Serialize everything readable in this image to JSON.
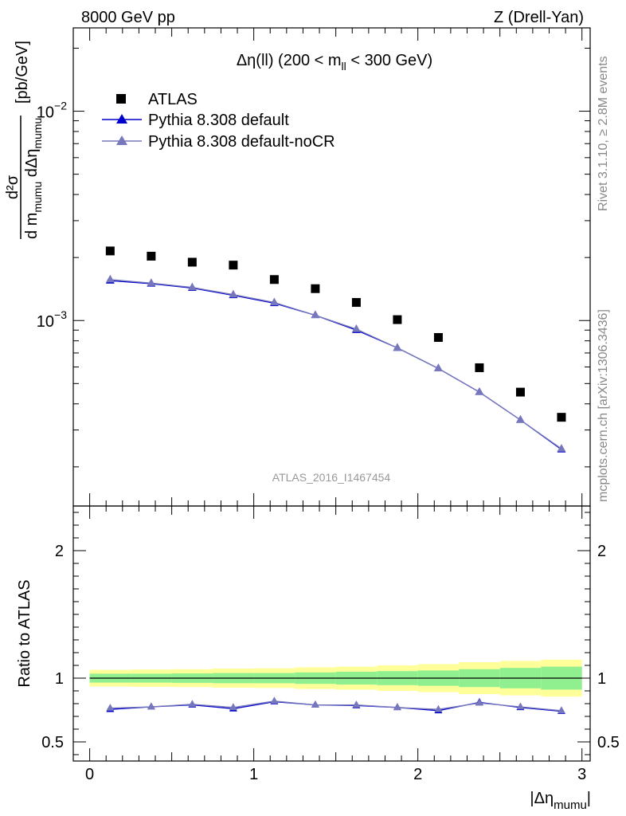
{
  "header": {
    "left": "8000 GeV pp",
    "right": "Z (Drell-Yan)"
  },
  "side_labels": {
    "rivet": "Rivet 3.1.10, ≥ 2.8M events",
    "mcplots": "mcplots.cern.ch [arXiv:1306.3436]"
  },
  "chart_data": [
    {
      "type": "scatter",
      "panel": "main",
      "title": "Δη(ll) (200 < m_ll < 300 GeV)",
      "title_parts": {
        "a": "Δη(ll) (200 < m",
        "sub": "ll",
        "b": " < 300 GeV)"
      },
      "ylabel_parts": {
        "num": "d²σ",
        "den_a": "d m",
        "den_sub1": "mumu",
        "den_b": " dΔη",
        "den_sub2": "mumu",
        "units": "[pb/GeV]"
      },
      "watermark": "ATLAS_2016_I1467454",
      "xlim": [
        -0.1,
        3.05
      ],
      "ylim": [
        0.00013,
        0.025
      ],
      "yscale": "log",
      "yticks": [
        {
          "value": 0.01,
          "base": "10",
          "exp": "−2"
        },
        {
          "value": 0.001,
          "base": "10",
          "exp": "−3"
        }
      ],
      "legend": "top-left",
      "x": [
        0.125,
        0.375,
        0.625,
        0.875,
        1.125,
        1.375,
        1.625,
        1.875,
        2.125,
        2.375,
        2.625,
        2.875
      ],
      "series": [
        {
          "name": "ATLAS",
          "marker": "square",
          "color": "#000000",
          "values": [
            0.00215,
            0.00203,
            0.0019,
            0.00184,
            0.00157,
            0.00142,
            0.00122,
            0.00101,
            0.00083,
            0.000595,
            0.000455,
            0.000345
          ]
        },
        {
          "name": "Pythia 8.308 default",
          "marker": "triangle",
          "color": "#0000cc",
          "values": [
            0.00155,
            0.0015,
            0.00143,
            0.00132,
            0.00121,
            0.00106,
            0.0009,
            0.00074,
            0.00059,
            0.000455,
            0.000335,
            0.000242
          ]
        },
        {
          "name": "Pythia 8.308 default-noCR",
          "marker": "triangle",
          "color": "#7777bb",
          "values": [
            0.00157,
            0.00151,
            0.00144,
            0.00133,
            0.00122,
            0.00106,
            0.00091,
            0.00074,
            0.00059,
            0.000455,
            0.000335,
            0.000244
          ]
        }
      ]
    },
    {
      "type": "scatter",
      "panel": "ratio",
      "ylabel": "Ratio to ATLAS",
      "xlabel_parts": {
        "a": "|Δη",
        "sub": "mumu",
        "b": "|"
      },
      "xlim": [
        -0.1,
        3.05
      ],
      "ylim": [
        0.35,
        2.35
      ],
      "xticks": [
        {
          "value": 0,
          "label": "0"
        },
        {
          "value": 1,
          "label": "1"
        },
        {
          "value": 2,
          "label": "2"
        },
        {
          "value": 3,
          "label": "3"
        }
      ],
      "yticks": [
        {
          "value": 0.5,
          "label": "0.5"
        },
        {
          "value": 1,
          "label": "1"
        },
        {
          "value": 2,
          "label": "2"
        }
      ],
      "bin_edges": [
        0,
        0.25,
        0.5,
        0.75,
        1.0,
        1.25,
        1.5,
        1.75,
        2.0,
        2.25,
        2.5,
        2.75,
        3.0
      ],
      "band_colors": {
        "inner": "#90f090",
        "outer": "#ffff99"
      },
      "band_inner": [
        0.035,
        0.035,
        0.037,
        0.04,
        0.04,
        0.045,
        0.05,
        0.055,
        0.06,
        0.07,
        0.08,
        0.09
      ],
      "band_outer": [
        0.065,
        0.068,
        0.07,
        0.075,
        0.077,
        0.085,
        0.09,
        0.1,
        0.11,
        0.125,
        0.135,
        0.145
      ],
      "x": [
        0.125,
        0.375,
        0.625,
        0.875,
        1.125,
        1.375,
        1.625,
        1.875,
        2.125,
        2.375,
        2.625,
        2.875
      ],
      "series": [
        {
          "name": "Pythia 8.308 default",
          "color": "#0000cc",
          "values": [
            0.755,
            0.775,
            0.79,
            0.76,
            0.815,
            0.79,
            0.785,
            0.77,
            0.745,
            0.81,
            0.77,
            0.74
          ]
        },
        {
          "name": "Pythia 8.308 default-noCR",
          "color": "#7777bb",
          "values": [
            0.765,
            0.775,
            0.795,
            0.77,
            0.82,
            0.79,
            0.79,
            0.77,
            0.755,
            0.805,
            0.775,
            0.745
          ]
        }
      ]
    }
  ]
}
